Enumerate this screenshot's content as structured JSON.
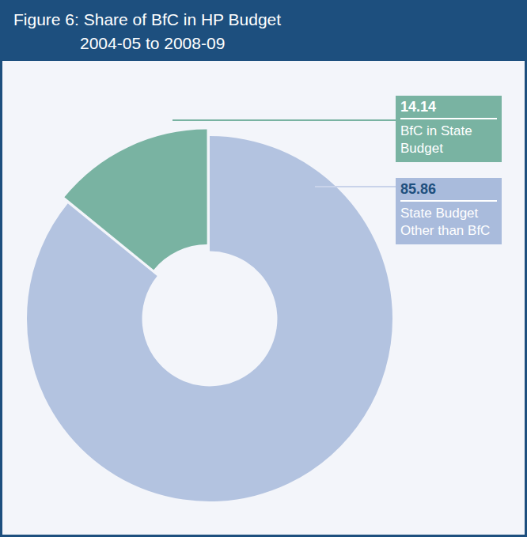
{
  "chart_data": {
    "type": "doughnut",
    "title": "Figure 6: Share of BfC in HP Budget",
    "subtitle": "2004-05 to 2008-09",
    "categories": [
      "BfC in State Budget",
      "State Budget Other than BfC"
    ],
    "values": [
      14.14,
      85.86
    ],
    "colors": [
      "#79b3a2",
      "#b3c3e0"
    ],
    "data_labels": true,
    "legend": "right"
  }
}
